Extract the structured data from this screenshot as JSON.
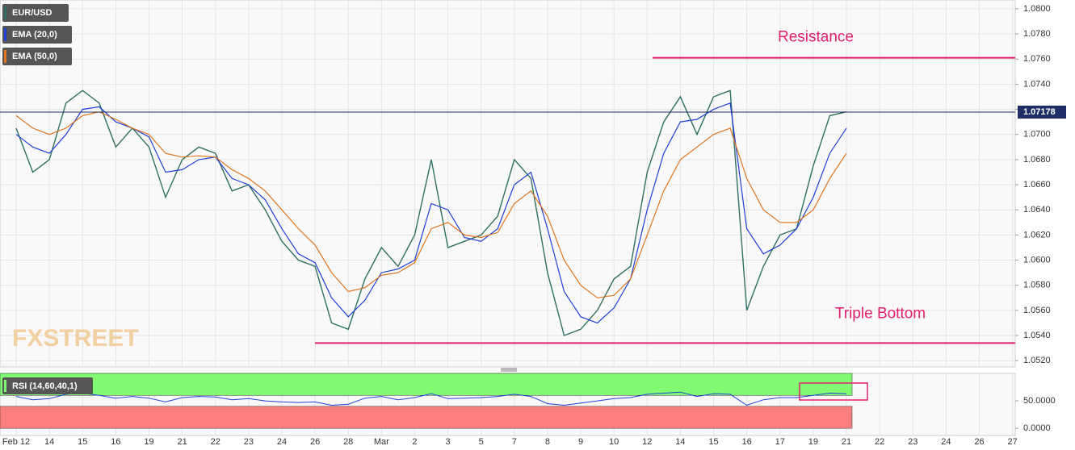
{
  "chart_data": {
    "type": "line",
    "grid": true,
    "categories": [
      "Feb 12",
      null,
      "14",
      null,
      "15",
      null,
      "16",
      null,
      "19",
      null,
      "21",
      null,
      "22",
      null,
      "23",
      null,
      "24",
      null,
      "26",
      null,
      "28",
      null,
      "Mar",
      null,
      "2",
      null,
      "3",
      null,
      "5",
      null,
      "7",
      null,
      "8",
      null,
      "9",
      null,
      "10",
      null,
      "12",
      null,
      "14",
      null,
      "15",
      null,
      "16",
      null,
      "17",
      null,
      "19",
      null,
      "21",
      null,
      "22",
      null,
      "23",
      null,
      "24",
      null,
      "26",
      null,
      "27"
    ],
    "series": [
      {
        "name": "EUR/USD",
        "color": "#2f6f62",
        "values": [
          1.0705,
          1.067,
          1.068,
          1.0725,
          1.0735,
          1.0725,
          1.069,
          1.0705,
          1.069,
          1.065,
          1.068,
          1.069,
          1.0685,
          1.0655,
          1.066,
          1.064,
          1.0615,
          1.06,
          1.0595,
          1.055,
          1.0545,
          1.0585,
          1.061,
          1.0595,
          1.062,
          1.068,
          1.061,
          1.0615,
          1.062,
          1.0635,
          1.068,
          1.0665,
          1.059,
          1.054,
          1.0545,
          1.056,
          1.0585,
          1.0595,
          1.067,
          1.071,
          1.073,
          1.07,
          1.073,
          1.0735,
          1.056,
          1.0595,
          1.062,
          1.0625,
          1.0675,
          1.0715,
          1.0718,
          null,
          null,
          null,
          null,
          null,
          null,
          null,
          null,
          null,
          null
        ]
      },
      {
        "name": "EMA (20,0)",
        "color": "#1f3fd6",
        "values": [
          1.07,
          1.069,
          1.0685,
          1.07,
          1.072,
          1.0722,
          1.071,
          1.0705,
          1.0698,
          1.067,
          1.0672,
          1.068,
          1.0682,
          1.0665,
          1.066,
          1.0648,
          1.0625,
          1.0605,
          1.0598,
          1.057,
          1.0555,
          1.0568,
          1.059,
          1.0593,
          1.06,
          1.0645,
          1.064,
          1.0618,
          1.0615,
          1.0625,
          1.066,
          1.067,
          1.0625,
          1.0575,
          1.0555,
          1.055,
          1.0562,
          1.0585,
          1.064,
          1.0685,
          1.071,
          1.0712,
          1.072,
          1.0725,
          1.0625,
          1.0605,
          1.0612,
          1.0625,
          1.065,
          1.0685,
          1.0705,
          null,
          null,
          null,
          null,
          null,
          null,
          null,
          null,
          null,
          null
        ]
      },
      {
        "name": "EMA (50,0)",
        "color": "#e0741f",
        "values": [
          1.0715,
          1.0705,
          1.07,
          1.0705,
          1.0715,
          1.0718,
          1.0712,
          1.0705,
          1.07,
          1.0685,
          1.0682,
          1.0683,
          1.0682,
          1.0672,
          1.0665,
          1.0655,
          1.064,
          1.0625,
          1.0612,
          1.059,
          1.0575,
          1.0578,
          1.0588,
          1.059,
          1.0598,
          1.0625,
          1.063,
          1.062,
          1.0618,
          1.0622,
          1.0645,
          1.0655,
          1.0635,
          1.06,
          1.058,
          1.057,
          1.0572,
          1.0585,
          1.062,
          1.0655,
          1.068,
          1.069,
          1.07,
          1.0705,
          1.0665,
          1.064,
          1.063,
          1.063,
          1.064,
          1.0665,
          1.0685,
          null,
          null,
          null,
          null,
          null,
          null,
          null,
          null,
          null,
          null
        ]
      }
    ],
    "ylim": [
      1.0515,
      1.0807
    ],
    "yticks": [
      {
        "value": 1.052,
        "label": "1.0520"
      },
      {
        "value": 1.054,
        "label": "1.0540"
      },
      {
        "value": 1.056,
        "label": "1.0560"
      },
      {
        "value": 1.058,
        "label": "1.0580"
      },
      {
        "value": 1.06,
        "label": "1.0600"
      },
      {
        "value": 1.062,
        "label": "1.0620"
      },
      {
        "value": 1.064,
        "label": "1.0640"
      },
      {
        "value": 1.066,
        "label": "1.0660"
      },
      {
        "value": 1.068,
        "label": "1.0680"
      },
      {
        "value": 1.07,
        "label": "1.0700"
      },
      {
        "value": 1.072,
        "label": "1.0720"
      },
      {
        "value": 1.074,
        "label": "1.0740"
      },
      {
        "value": 1.076,
        "label": "1.0760"
      },
      {
        "value": 1.078,
        "label": "1.0780"
      },
      {
        "value": 1.08,
        "label": "1.0800"
      }
    ],
    "last_price": 1.07178,
    "levels": [
      {
        "label": "Resistance",
        "value": 1.0761,
        "color": "#e0206e"
      },
      {
        "label": "Triple Bottom",
        "value": 1.0534,
        "color": "#e0206e"
      }
    ],
    "watermark": "FXSTREET",
    "rsi": {
      "name": "RSI (14,60,40,1)",
      "color": "#1f3fd6",
      "values": [
        58,
        52,
        54,
        62,
        64,
        60,
        55,
        58,
        55,
        48,
        56,
        58,
        57,
        52,
        54,
        50,
        48,
        47,
        48,
        42,
        44,
        55,
        58,
        52,
        56,
        63,
        54,
        55,
        56,
        58,
        62,
        58,
        45,
        42,
        46,
        50,
        54,
        56,
        62,
        64,
        66,
        58,
        63,
        62,
        42,
        52,
        56,
        56,
        60,
        64,
        63,
        null,
        null,
        null,
        null,
        null,
        null,
        null,
        null,
        null,
        null
      ],
      "ylim": [
        -13,
        100
      ],
      "yticks": [
        {
          "value": 50,
          "label": "50.0000"
        },
        {
          "value": 0,
          "label": "0.0000"
        }
      ],
      "zones": [
        {
          "from": 60,
          "to": 100,
          "color": "#80fb72"
        },
        {
          "from": 0,
          "to": 40,
          "color": "#fb7f7f"
        }
      ]
    }
  }
}
